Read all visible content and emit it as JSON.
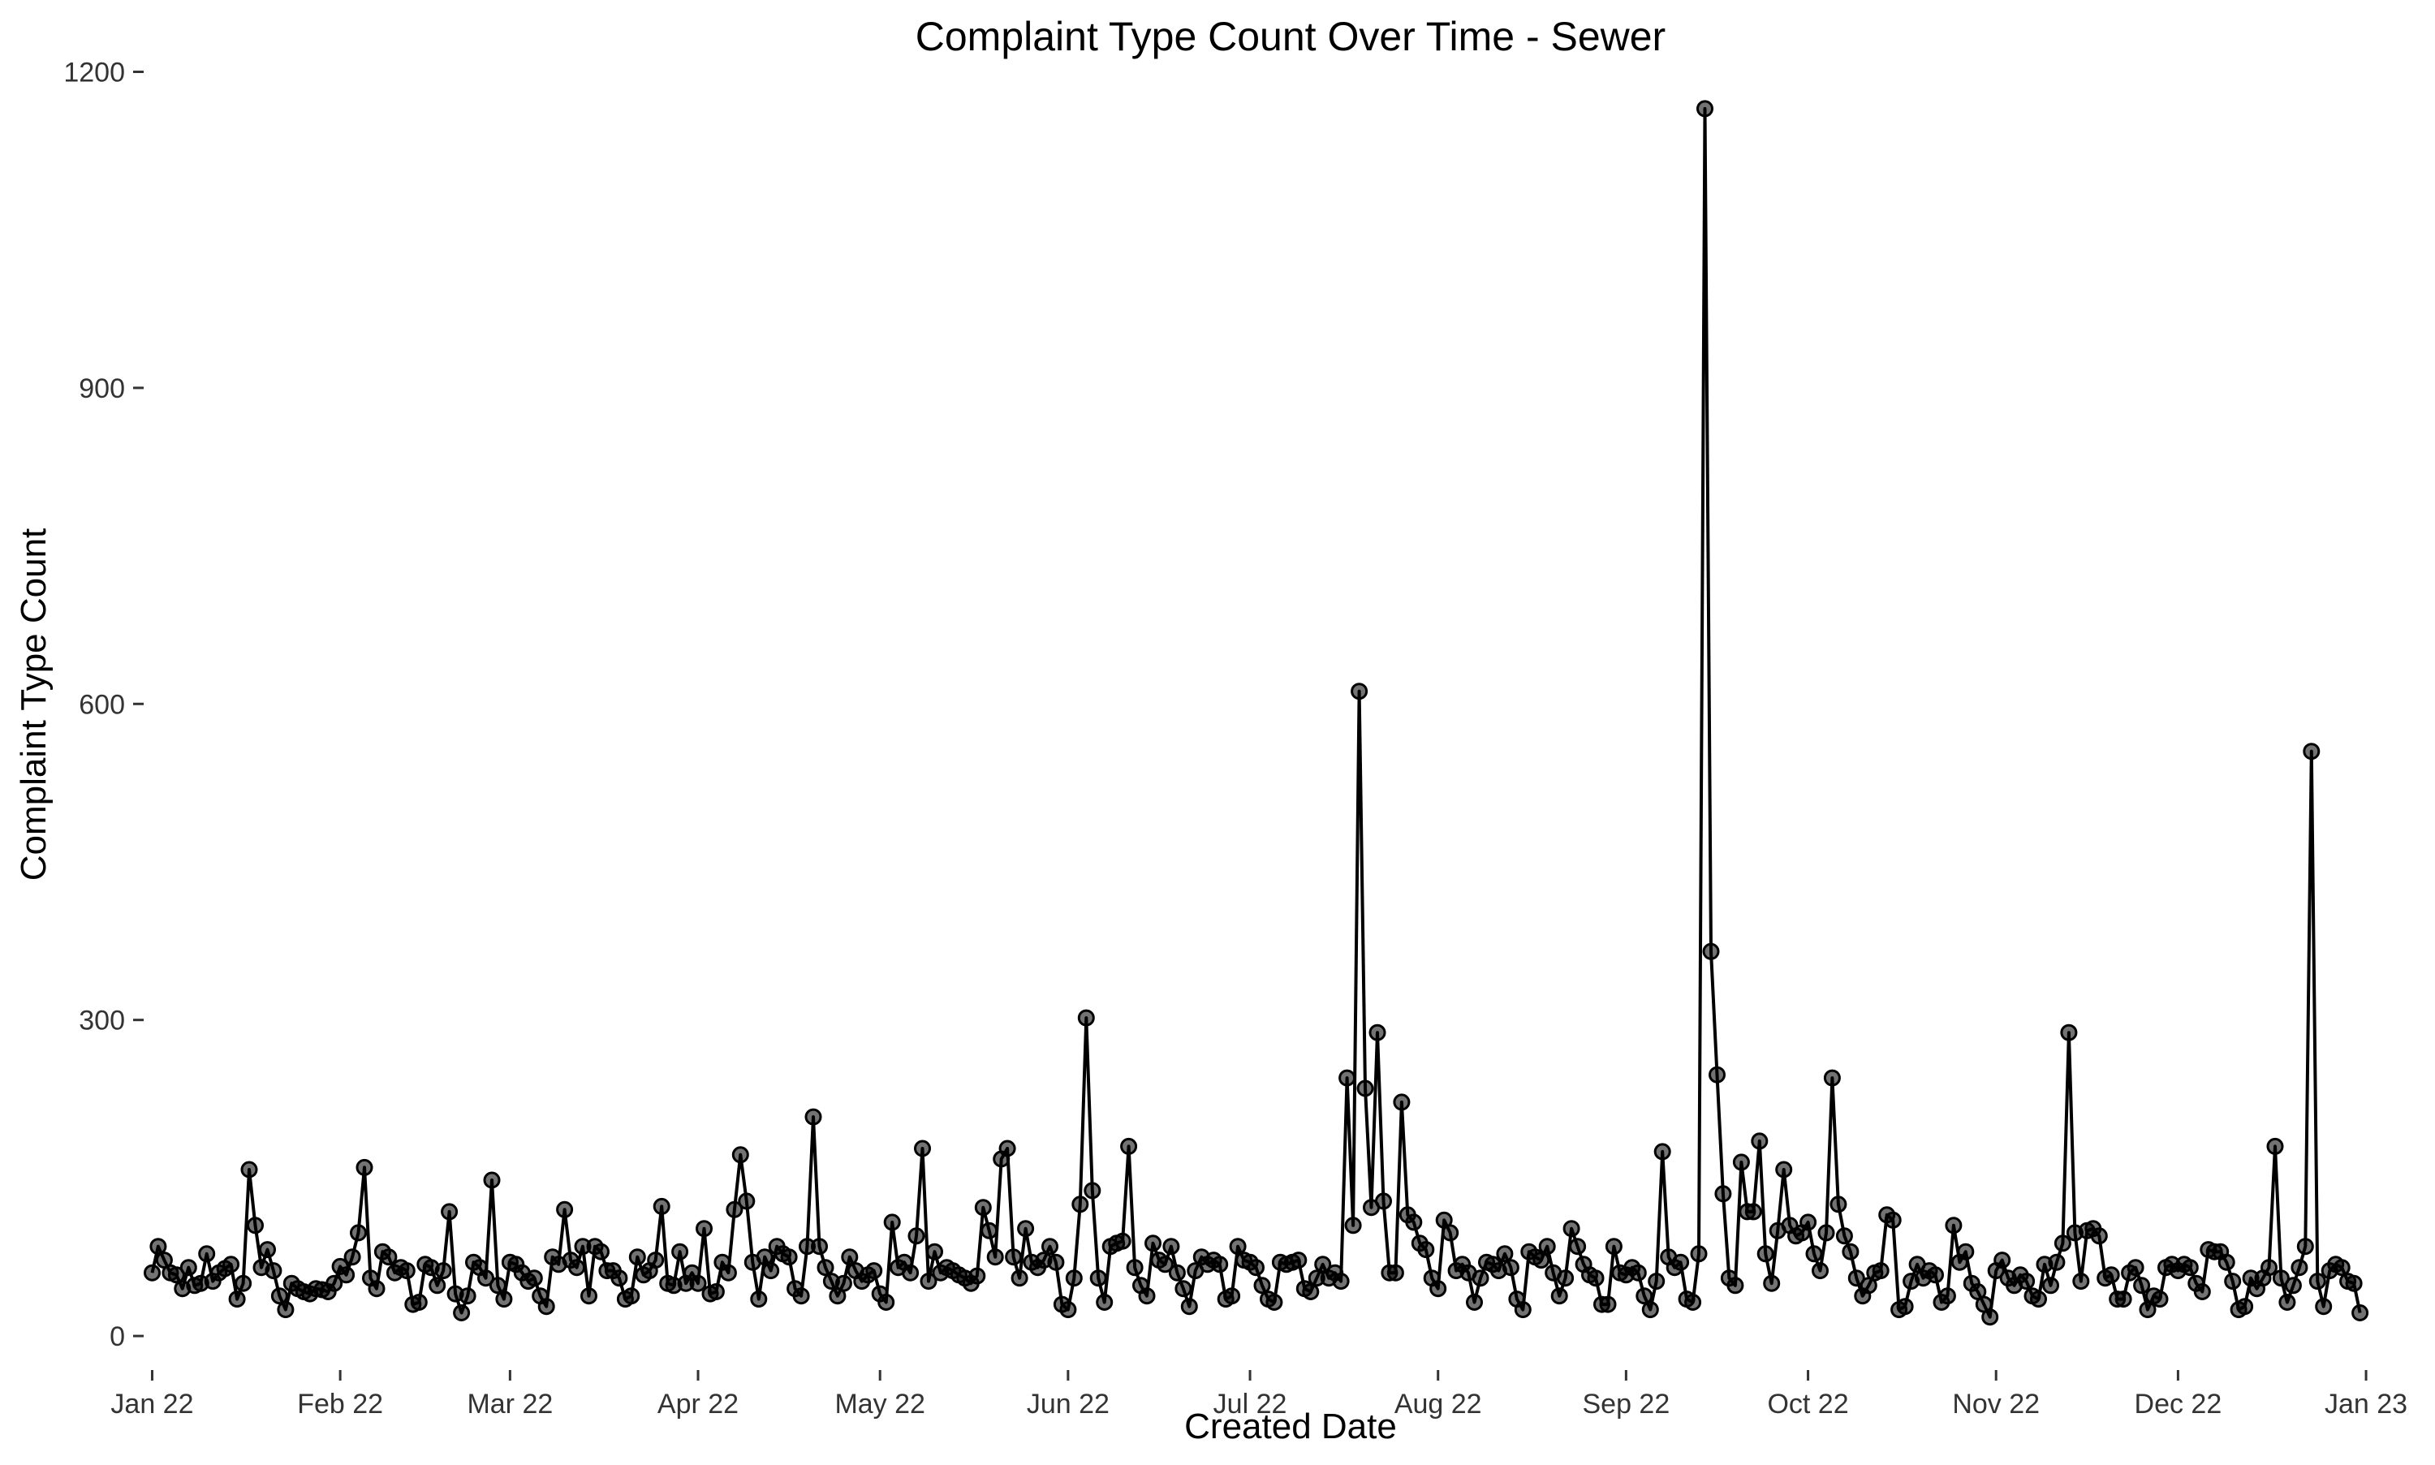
{
  "chart_data": {
    "type": "line",
    "title": "Complaint Type Count Over Time - Sewer",
    "xlabel": "Created Date",
    "ylabel": "Complaint Type Count",
    "xlim": [
      "2021-12-31",
      "2023-01-03"
    ],
    "ylim": [
      -30,
      1195
    ],
    "y_ticks": [
      0,
      300,
      600,
      900,
      1200
    ],
    "x_ticks": [
      {
        "date": "2022-01-01",
        "label": "Jan 22"
      },
      {
        "date": "2022-02-01",
        "label": "Feb 22"
      },
      {
        "date": "2022-03-01",
        "label": "Mar 22"
      },
      {
        "date": "2022-04-01",
        "label": "Apr 22"
      },
      {
        "date": "2022-05-01",
        "label": "May 22"
      },
      {
        "date": "2022-06-01",
        "label": "Jun 22"
      },
      {
        "date": "2022-07-01",
        "label": "Jul 22"
      },
      {
        "date": "2022-08-01",
        "label": "Aug 22"
      },
      {
        "date": "2022-09-01",
        "label": "Sep 22"
      },
      {
        "date": "2022-10-01",
        "label": "Oct 22"
      },
      {
        "date": "2022-11-01",
        "label": "Nov 22"
      },
      {
        "date": "2022-12-01",
        "label": "Dec 22"
      },
      {
        "date": "2023-01-01",
        "label": "Jan 23"
      }
    ],
    "grid": false,
    "legend": "none",
    "colors": {
      "line": "#000000",
      "point": "#000000"
    },
    "x_start": "2022-01-01",
    "x_step": "1 day",
    "series": [
      {
        "values": [
          60,
          85,
          72,
          60,
          58,
          45,
          65,
          48,
          50,
          78,
          52,
          60,
          64,
          68,
          35,
          50,
          158,
          105,
          65,
          82,
          62,
          38,
          25,
          50,
          45,
          42,
          40,
          45,
          44,
          42,
          50,
          66,
          58,
          75,
          98,
          160,
          55,
          45,
          80,
          75,
          60,
          65,
          62,
          30,
          32,
          68,
          65,
          48,
          62,
          118,
          40,
          22,
          38,
          70,
          65,
          55,
          148,
          48,
          35,
          70,
          68,
          60,
          52,
          55,
          38,
          28,
          75,
          68,
          120,
          72,
          65,
          85,
          38,
          85,
          80,
          62,
          62,
          55,
          35,
          38,
          75,
          58,
          62,
          72,
          123,
          50,
          48,
          80,
          50,
          60,
          50,
          102,
          40,
          42,
          70,
          60,
          120,
          172,
          128,
          70,
          35,
          75,
          62,
          85,
          78,
          75,
          45,
          38,
          85,
          208,
          85,
          65,
          52,
          38,
          50,
          75,
          62,
          52,
          58,
          62,
          40,
          32,
          108,
          65,
          70,
          60,
          95,
          178,
          52,
          80,
          60,
          65,
          62,
          58,
          55,
          50,
          57,
          122,
          100,
          75,
          168,
          178,
          75,
          55,
          102,
          70,
          65,
          72,
          85,
          70,
          30,
          25,
          55,
          125,
          302,
          138,
          55,
          32,
          85,
          88,
          90,
          180,
          65,
          48,
          38,
          88,
          72,
          68,
          85,
          60,
          45,
          28,
          62,
          75,
          68,
          72,
          68,
          35,
          38,
          85,
          72,
          70,
          65,
          48,
          35,
          32,
          70,
          68,
          70,
          72,
          45,
          42,
          55,
          68,
          55,
          60,
          52,
          245,
          105,
          612,
          235,
          122,
          288,
          128,
          60,
          60,
          222,
          115,
          108,
          88,
          82,
          55,
          45,
          110,
          98,
          62,
          68,
          60,
          32,
          55,
          70,
          68,
          62,
          78,
          65,
          35,
          25,
          80,
          75,
          72,
          85,
          60,
          38,
          55,
          102,
          85,
          68,
          58,
          55,
          30,
          30,
          85,
          60,
          58,
          65,
          60,
          38,
          25,
          52,
          175,
          75,
          65,
          70,
          35,
          32,
          78,
          1165,
          365,
          248,
          135,
          55,
          48,
          165,
          118,
          118,
          185,
          78,
          50,
          100,
          158,
          105,
          95,
          98,
          108,
          78,
          62,
          98,
          245,
          125,
          95,
          80,
          55,
          38,
          48,
          60,
          62,
          115,
          110,
          25,
          28,
          52,
          68,
          55,
          62,
          58,
          32,
          38,
          105,
          70,
          80,
          50,
          42,
          30,
          18,
          62,
          72,
          55,
          48,
          58,
          52,
          38,
          35,
          68,
          48,
          70,
          88,
          288,
          98,
          52,
          100,
          102,
          95,
          55,
          58,
          35,
          35,
          60,
          65,
          48,
          25,
          38,
          35,
          65,
          68,
          62,
          68,
          65,
          50,
          42,
          82,
          80,
          80,
          70,
          52,
          25,
          28,
          55,
          45,
          55,
          65,
          180,
          55,
          32,
          48,
          65,
          85,
          555,
          52,
          28,
          62,
          68,
          65,
          52,
          50,
          22
        ]
      }
    ]
  }
}
